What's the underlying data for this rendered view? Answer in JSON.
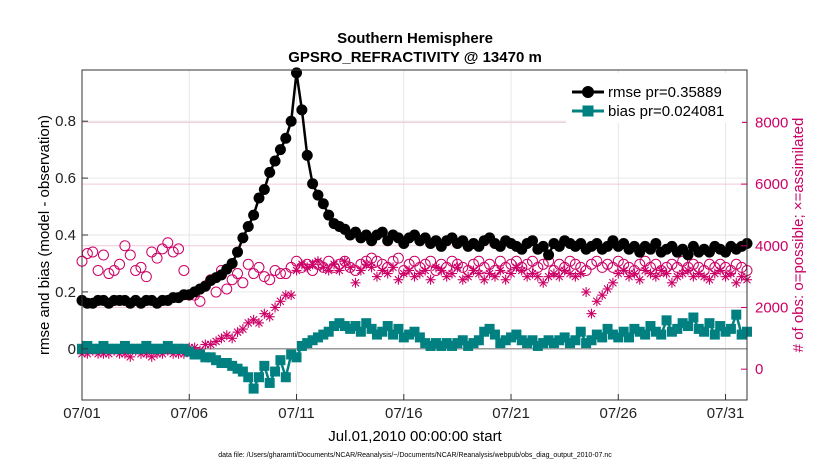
{
  "chart_data": {
    "type": "line",
    "title": "Southern Hemisphere",
    "subtitle": "GPSRO_REFRACTIVITY @ 13470 m",
    "xlabel": "Jul.01,2010 00:00:00 start",
    "ylabel": "rmse and bias (model - observation)",
    "ylabel_right": "# of obs: o=possible; ×=assimilated",
    "footer": "data file: /Users/gharamti/Documents/NCAR/Reanalysis/~/Documents/NCAR/Reanalysis/webpub/obs_diag_output_2010-07.nc",
    "x_unit": "day of July 2010 (1 = 07/01)",
    "xlim": [
      1,
      32
    ],
    "ylim": [
      -0.18,
      0.98
    ],
    "ylim_right": [
      -1000,
      9700
    ],
    "x_ticks": [
      1,
      6,
      11,
      16,
      21,
      26,
      31
    ],
    "x_tick_labels": [
      "07/01",
      "07/06",
      "07/11",
      "07/16",
      "07/21",
      "07/26",
      "07/31"
    ],
    "y_ticks": [
      0,
      0.2,
      0.4,
      0.6,
      0.8
    ],
    "y_tick_labels": [
      "0",
      "0.2",
      "0.4",
      "0.6",
      "0.8"
    ],
    "y_right_ticks": [
      0,
      2000,
      4000,
      6000,
      8000
    ],
    "y_right_tick_labels": [
      "0",
      "2000",
      "4000",
      "6000",
      "8000"
    ],
    "x": [
      1,
      1.25,
      1.5,
      1.75,
      2,
      2.25,
      2.5,
      2.75,
      3,
      3.25,
      3.5,
      3.75,
      4,
      4.25,
      4.5,
      4.75,
      5,
      5.25,
      5.5,
      5.75,
      6,
      6.25,
      6.5,
      6.75,
      7,
      7.25,
      7.5,
      7.75,
      8,
      8.25,
      8.5,
      8.75,
      9,
      9.25,
      9.5,
      9.75,
      10,
      10.25,
      10.5,
      10.75,
      11,
      11.25,
      11.5,
      11.75,
      12,
      12.25,
      12.5,
      12.75,
      13,
      13.25,
      13.5,
      13.75,
      14,
      14.25,
      14.5,
      14.75,
      15,
      15.25,
      15.5,
      15.75,
      16,
      16.25,
      16.5,
      16.75,
      17,
      17.25,
      17.5,
      17.75,
      18,
      18.25,
      18.5,
      18.75,
      19,
      19.25,
      19.5,
      19.75,
      20,
      20.25,
      20.5,
      20.75,
      21,
      21.25,
      21.5,
      21.75,
      22,
      22.25,
      22.5,
      22.75,
      23,
      23.25,
      23.5,
      23.75,
      24,
      24.25,
      24.5,
      24.75,
      25,
      25.25,
      25.5,
      25.75,
      26,
      26.25,
      26.5,
      26.75,
      27,
      27.25,
      27.5,
      27.75,
      28,
      28.25,
      28.5,
      28.75,
      29,
      29.25,
      29.5,
      29.75,
      30,
      30.25,
      30.5,
      30.75,
      31,
      31.25,
      31.5,
      31.75,
      32
    ],
    "legend": [
      {
        "label": "rmse pr=0.35889",
        "color": "#000000",
        "marker": "circle"
      },
      {
        "label": "bias pr=0.024081",
        "color": "#008080",
        "marker": "square"
      }
    ],
    "series": [
      {
        "name": "rmse",
        "axis": "left",
        "color": "#000000",
        "marker": "circle",
        "values": [
          0.17,
          0.16,
          0.16,
          0.17,
          0.17,
          0.16,
          0.17,
          0.17,
          0.17,
          0.16,
          0.17,
          0.16,
          0.17,
          0.17,
          0.16,
          0.17,
          0.17,
          0.18,
          0.18,
          0.19,
          0.19,
          0.2,
          0.21,
          0.22,
          0.24,
          0.25,
          0.26,
          0.28,
          0.3,
          0.34,
          0.39,
          0.43,
          0.47,
          0.53,
          0.56,
          0.62,
          0.66,
          0.7,
          0.74,
          0.8,
          0.97,
          0.84,
          0.68,
          0.58,
          0.54,
          0.51,
          0.47,
          0.44,
          0.43,
          0.42,
          0.4,
          0.41,
          0.39,
          0.4,
          0.38,
          0.4,
          0.41,
          0.38,
          0.4,
          0.39,
          0.37,
          0.39,
          0.4,
          0.38,
          0.39,
          0.37,
          0.38,
          0.36,
          0.38,
          0.39,
          0.37,
          0.38,
          0.36,
          0.37,
          0.36,
          0.38,
          0.39,
          0.37,
          0.36,
          0.38,
          0.37,
          0.36,
          0.35,
          0.37,
          0.38,
          0.35,
          0.36,
          0.33,
          0.37,
          0.36,
          0.38,
          0.37,
          0.36,
          0.37,
          0.35,
          0.36,
          0.37,
          0.35,
          0.36,
          0.38,
          0.36,
          0.37,
          0.35,
          0.36,
          0.34,
          0.36,
          0.35,
          0.37,
          0.34,
          0.35,
          0.36,
          0.34,
          0.35,
          0.33,
          0.36,
          0.34,
          0.35,
          0.34,
          0.36,
          0.35,
          0.34,
          0.36,
          0.35,
          0.36,
          0.37
        ]
      },
      {
        "name": "bias",
        "axis": "left",
        "color": "#008080",
        "marker": "square",
        "values": [
          0.0,
          0.01,
          0.0,
          0.0,
          0.01,
          0.0,
          0.0,
          0.0,
          0.01,
          0.0,
          0.0,
          0.0,
          0.01,
          0.0,
          0.0,
          0.0,
          0.01,
          0.0,
          0.0,
          0.0,
          -0.01,
          -0.02,
          -0.02,
          -0.03,
          -0.03,
          -0.04,
          -0.05,
          -0.05,
          -0.06,
          -0.07,
          -0.08,
          -0.1,
          -0.14,
          -0.1,
          -0.06,
          -0.12,
          -0.08,
          -0.04,
          -0.1,
          -0.02,
          -0.03,
          0.01,
          0.02,
          0.03,
          0.04,
          0.05,
          0.06,
          0.08,
          0.09,
          0.08,
          0.07,
          0.08,
          0.06,
          0.09,
          0.07,
          0.05,
          0.06,
          0.08,
          0.05,
          0.07,
          0.04,
          0.05,
          0.06,
          0.04,
          0.02,
          0.01,
          0.02,
          0.01,
          0.02,
          0.01,
          0.02,
          0.03,
          0.01,
          0.02,
          0.03,
          0.06,
          0.07,
          0.05,
          0.02,
          0.03,
          0.04,
          0.05,
          0.03,
          0.02,
          0.03,
          0.01,
          0.02,
          0.03,
          0.02,
          0.03,
          0.04,
          0.02,
          0.03,
          0.06,
          0.02,
          0.03,
          0.05,
          0.04,
          0.07,
          0.05,
          0.04,
          0.06,
          0.04,
          0.07,
          0.06,
          0.05,
          0.08,
          0.06,
          0.05,
          0.1,
          0.06,
          0.07,
          0.09,
          0.08,
          0.11,
          0.07,
          0.06,
          0.09,
          0.05,
          0.08,
          0.06,
          0.07,
          0.12,
          0.05,
          0.06
        ]
      },
      {
        "name": "possible (o)",
        "axis": "right",
        "color": "#cc0066",
        "marker": "open-circle",
        "values": [
          3500,
          3750,
          3800,
          3200,
          3700,
          3100,
          3200,
          3400,
          4000,
          3700,
          3200,
          3300,
          3000,
          3800,
          3600,
          3900,
          4100,
          3800,
          3900,
          3200,
          2400,
          2400,
          2200,
          2700,
          2900,
          2500,
          3200,
          2600,
          2900,
          3100,
          2800,
          3400,
          3100,
          3300,
          3000,
          2900,
          3200,
          3100,
          3100,
          3300,
          3500,
          3300,
          3400,
          3200,
          3400,
          3300,
          3500,
          3300,
          3400,
          3500,
          3300,
          3200,
          3400,
          3500,
          3600,
          3500,
          3400,
          3300,
          3500,
          3600,
          3200,
          3400,
          3500,
          3300,
          3400,
          3500,
          3200,
          3400,
          3300,
          3500,
          3400,
          3300,
          3200,
          3400,
          3500,
          3300,
          3400,
          3200,
          3500,
          3300,
          3400,
          3500,
          3300,
          3400,
          3500,
          3300,
          3400,
          3500,
          3200,
          3400,
          3300,
          3500,
          3400,
          3300,
          3200,
          3400,
          3500,
          3300,
          3400,
          3300,
          3500,
          3400,
          3300,
          3200,
          3400,
          3500,
          3300,
          3400,
          3200,
          3300,
          3400,
          3300,
          3500,
          3300,
          3400,
          3300,
          3200,
          3400,
          3300,
          3400,
          3300,
          3200,
          3400,
          3300,
          3200
        ]
      },
      {
        "name": "assimilated (×)",
        "axis": "right",
        "color": "#cc0066",
        "marker": "asterisk",
        "values": [
          500,
          500,
          600,
          500,
          500,
          500,
          600,
          500,
          500,
          400,
          600,
          500,
          500,
          400,
          500,
          500,
          600,
          500,
          500,
          500,
          700,
          700,
          600,
          800,
          800,
          900,
          1000,
          1100,
          1000,
          1200,
          1300,
          1500,
          1600,
          1500,
          1800,
          1700,
          2000,
          2200,
          2400,
          2400,
          3200,
          3400,
          3300,
          3400,
          3500,
          3300,
          3200,
          3400,
          3200,
          3500,
          3300,
          2800,
          3200,
          3400,
          3300,
          3000,
          3200,
          3100,
          3300,
          2900,
          3100,
          3200,
          3000,
          3100,
          3200,
          2900,
          3300,
          3200,
          3000,
          3100,
          3300,
          2900,
          3000,
          3200,
          3100,
          2900,
          3100,
          3000,
          3200,
          2900,
          3100,
          3300,
          3200,
          3000,
          3100,
          3000,
          2800,
          3000,
          3100,
          3000,
          3200,
          3100,
          3000,
          3100,
          2500,
          1800,
          2200,
          2400,
          2600,
          2800,
          3100,
          3200,
          3000,
          3100,
          2900,
          3200,
          3100,
          3000,
          3200,
          3100,
          2800,
          3000,
          3100,
          3200,
          3000,
          3100,
          3000,
          2900,
          3100,
          3200,
          3000,
          3100,
          2800,
          3000,
          2900
        ]
      }
    ]
  }
}
